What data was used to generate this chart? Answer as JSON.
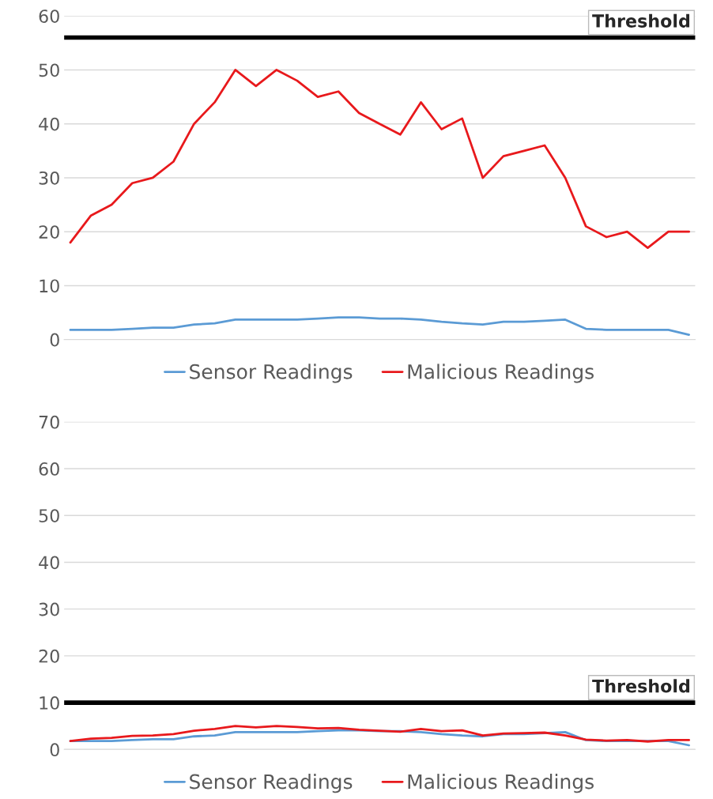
{
  "chart_data": [
    {
      "type": "line",
      "categories": [
        null,
        null,
        null,
        null,
        null,
        null,
        null,
        null,
        null,
        null,
        null,
        null,
        null,
        null,
        null,
        null,
        null,
        null,
        null,
        null,
        null,
        null,
        null,
        null,
        null,
        null,
        null,
        null,
        null,
        null,
        null
      ],
      "series": [
        {
          "name": "Sensor Readings",
          "color": "#5b9bd5",
          "values": [
            1.8,
            1.8,
            1.8,
            2,
            2.2,
            2.2,
            2.8,
            3,
            3.7,
            3.7,
            3.7,
            3.7,
            3.9,
            4.1,
            4.1,
            3.9,
            3.9,
            3.7,
            3.3,
            3,
            2.8,
            3.3,
            3.3,
            3.5,
            3.7,
            2,
            1.8,
            1.8,
            1.8,
            1.8,
            0.9
          ]
        },
        {
          "name": "Malicious Readings",
          "color": "#e8191c",
          "values": [
            18,
            23,
            25,
            29,
            30,
            33,
            40,
            44,
            50,
            47,
            50,
            48,
            45,
            46,
            42,
            40,
            38,
            44,
            39,
            41,
            30,
            34,
            35,
            36,
            30,
            21,
            19,
            20,
            17,
            20,
            20
          ]
        }
      ],
      "ylim": [
        0,
        60
      ],
      "yticks": [
        0,
        10,
        20,
        30,
        40,
        50,
        60
      ],
      "grid": "y",
      "legend": "bottom",
      "line_style": "solid",
      "ref_lines": [
        {
          "axis": "y",
          "value": 56,
          "label": "Threshold",
          "color": "#000000"
        }
      ]
    },
    {
      "type": "line",
      "categories": [
        null,
        null,
        null,
        null,
        null,
        null,
        null,
        null,
        null,
        null,
        null,
        null,
        null,
        null,
        null,
        null,
        null,
        null,
        null,
        null,
        null,
        null,
        null,
        null,
        null,
        null,
        null,
        null,
        null,
        null,
        null
      ],
      "series": [
        {
          "name": "Sensor Readings",
          "color": "#5b9bd5",
          "values": [
            1.8,
            1.8,
            1.8,
            2,
            2.2,
            2.2,
            2.8,
            3,
            3.7,
            3.7,
            3.7,
            3.7,
            3.9,
            4.1,
            4.1,
            3.9,
            3.9,
            3.7,
            3.3,
            3,
            2.8,
            3.3,
            3.3,
            3.5,
            3.7,
            2,
            1.8,
            1.8,
            1.8,
            1.8,
            0.9
          ]
        },
        {
          "name": "Malicious Readings",
          "color": "#e8191c",
          "values": [
            1.8,
            2.3,
            2.5,
            2.9,
            3,
            3.3,
            4,
            4.4,
            5,
            4.7,
            5,
            4.8,
            4.5,
            4.6,
            4.2,
            4,
            3.8,
            4.4,
            3.9,
            4.1,
            3,
            3.4,
            3.5,
            3.6,
            3,
            2.1,
            1.9,
            2,
            1.7,
            2,
            2
          ]
        }
      ],
      "ylim": [
        0,
        70
      ],
      "yticks": [
        0,
        10,
        20,
        30,
        40,
        50,
        60,
        70
      ],
      "grid": "y",
      "legend": "bottom",
      "line_style": "solid",
      "ref_lines": [
        {
          "axis": "y",
          "value": 10,
          "label": "Threshold",
          "color": "#000000"
        }
      ]
    }
  ]
}
